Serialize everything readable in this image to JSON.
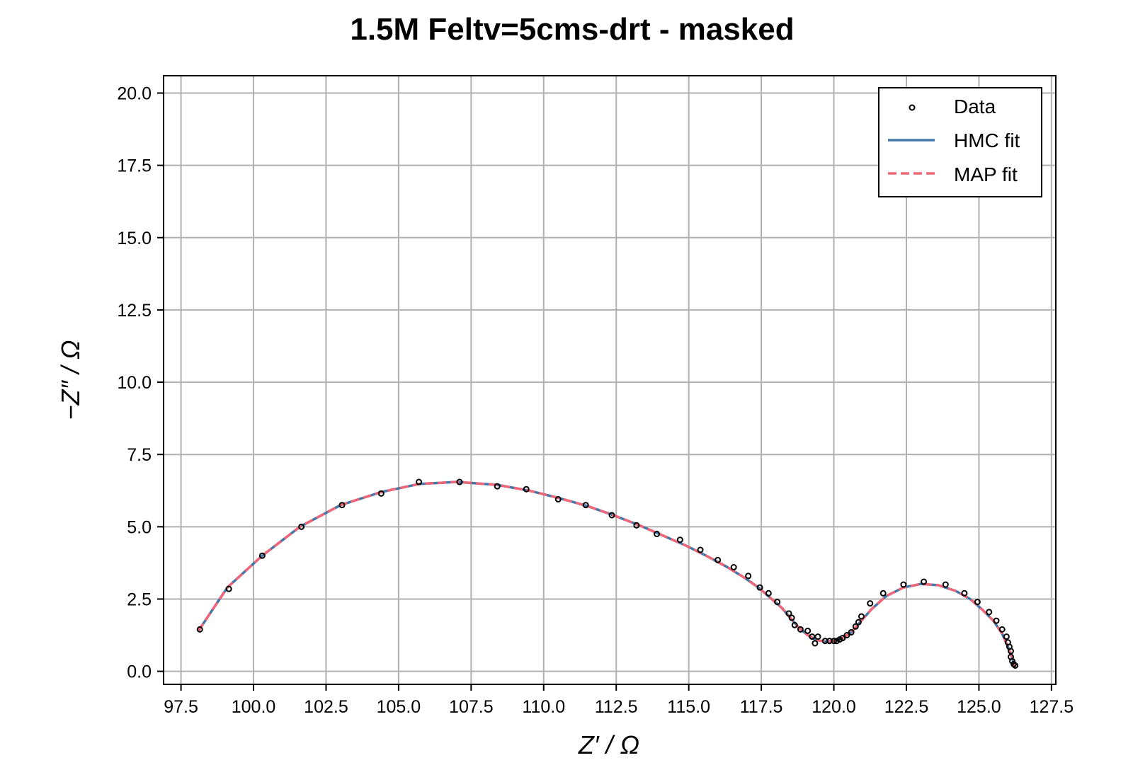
{
  "chart_data": {
    "type": "scatter",
    "title": "1.5M Feltv=5cms-drt - masked",
    "xlabel": "Z′ / Ω",
    "ylabel": "−Z″ / Ω",
    "xlim": [
      96.9,
      127.65
    ],
    "ylim": [
      -0.45,
      20.6
    ],
    "xticks": [
      97.5,
      100.0,
      102.5,
      105.0,
      107.5,
      110.0,
      112.5,
      115.0,
      117.5,
      120.0,
      122.5,
      125.0,
      127.5
    ],
    "yticks": [
      0.0,
      2.5,
      5.0,
      7.5,
      10.0,
      12.5,
      15.0,
      17.5,
      20.0
    ],
    "xtick_labels": [
      "97.5",
      "100.0",
      "102.5",
      "105.0",
      "107.5",
      "110.0",
      "112.5",
      "115.0",
      "117.5",
      "120.0",
      "122.5",
      "125.0",
      "127.5"
    ],
    "ytick_labels": [
      "0.0",
      "2.5",
      "5.0",
      "7.5",
      "10.0",
      "12.5",
      "15.0",
      "17.5",
      "20.0"
    ],
    "grid": true,
    "legend_position": "top-right",
    "legend": [
      {
        "label": "Data",
        "marker": "circle",
        "color": "#000000"
      },
      {
        "label": "HMC fit",
        "style": "solid",
        "color": "#4477aa"
      },
      {
        "label": "MAP fit",
        "style": "dashed",
        "color": "#ee6677"
      }
    ],
    "series": [
      {
        "name": "Data",
        "kind": "scatter",
        "color": "#000000",
        "x": [
          98.15,
          99.15,
          100.3,
          101.65,
          103.05,
          104.4,
          105.7,
          107.1,
          108.4,
          109.4,
          110.5,
          111.45,
          112.35,
          113.2,
          113.9,
          114.7,
          115.4,
          116.0,
          116.55,
          117.05,
          117.45,
          117.75,
          118.05,
          118.45,
          118.55,
          118.65,
          118.85,
          119.1,
          119.25,
          119.35,
          119.45,
          119.7,
          119.85,
          120.0,
          120.1,
          120.2,
          120.3,
          120.45,
          120.6,
          120.75,
          120.85,
          120.95,
          121.25,
          121.7,
          122.4,
          123.1,
          123.85,
          124.5,
          124.95,
          125.35,
          125.6,
          125.8,
          125.95,
          126.0,
          126.05,
          126.1,
          126.1,
          126.15,
          126.2,
          126.25
        ],
        "y": [
          1.45,
          2.85,
          4.0,
          5.0,
          5.75,
          6.15,
          6.55,
          6.55,
          6.4,
          6.3,
          5.95,
          5.75,
          5.4,
          5.05,
          4.75,
          4.55,
          4.2,
          3.85,
          3.6,
          3.3,
          2.9,
          2.7,
          2.4,
          2.0,
          1.85,
          1.6,
          1.45,
          1.4,
          1.2,
          0.97,
          1.2,
          1.05,
          1.05,
          1.05,
          1.05,
          1.1,
          1.15,
          1.25,
          1.35,
          1.55,
          1.7,
          1.9,
          2.35,
          2.7,
          3.0,
          3.1,
          3.0,
          2.7,
          2.4,
          2.05,
          1.75,
          1.45,
          1.2,
          1.0,
          0.85,
          0.7,
          0.5,
          0.35,
          0.25,
          0.2
        ]
      },
      {
        "name": "HMC fit",
        "kind": "line",
        "color": "#4477aa",
        "x": [
          98.1,
          99.1,
          100.3,
          101.6,
          103.0,
          104.4,
          105.7,
          107.0,
          108.4,
          109.5,
          110.5,
          111.5,
          112.4,
          113.3,
          114.1,
          114.9,
          115.6,
          116.3,
          116.9,
          117.4,
          117.8,
          118.2,
          118.5,
          118.8,
          119.1,
          119.4,
          119.7,
          120.0,
          120.3,
          120.6,
          120.9,
          121.3,
          121.8,
          122.4,
          123.0,
          123.6,
          124.2,
          124.7,
          125.1,
          125.5,
          125.8,
          126.0,
          126.15,
          126.25
        ],
        "y": [
          1.4,
          2.9,
          4.0,
          5.0,
          5.75,
          6.2,
          6.48,
          6.55,
          6.45,
          6.25,
          6.0,
          5.72,
          5.4,
          5.05,
          4.7,
          4.35,
          4.0,
          3.62,
          3.25,
          2.9,
          2.55,
          2.2,
          1.85,
          1.5,
          1.25,
          1.08,
          1.03,
          1.05,
          1.15,
          1.35,
          1.7,
          2.15,
          2.6,
          2.9,
          3.02,
          2.98,
          2.78,
          2.5,
          2.15,
          1.75,
          1.3,
          0.85,
          0.45,
          0.15
        ]
      },
      {
        "name": "MAP fit",
        "kind": "line",
        "color": "#ee6677",
        "x": [
          98.1,
          99.1,
          100.3,
          101.6,
          103.0,
          104.4,
          105.7,
          107.0,
          108.4,
          109.5,
          110.5,
          111.5,
          112.4,
          113.3,
          114.1,
          114.9,
          115.6,
          116.3,
          116.9,
          117.4,
          117.8,
          118.2,
          118.5,
          118.8,
          119.1,
          119.4,
          119.7,
          120.0,
          120.3,
          120.6,
          120.9,
          121.3,
          121.8,
          122.4,
          123.0,
          123.6,
          124.2,
          124.7,
          125.1,
          125.5,
          125.8,
          126.0,
          126.15,
          126.25
        ],
        "y": [
          1.4,
          2.9,
          4.0,
          5.0,
          5.75,
          6.2,
          6.48,
          6.55,
          6.45,
          6.25,
          6.0,
          5.72,
          5.4,
          5.05,
          4.7,
          4.35,
          4.0,
          3.62,
          3.25,
          2.9,
          2.55,
          2.2,
          1.85,
          1.5,
          1.25,
          1.08,
          1.03,
          1.05,
          1.15,
          1.35,
          1.7,
          2.15,
          2.6,
          2.9,
          3.02,
          2.98,
          2.78,
          2.5,
          2.15,
          1.75,
          1.3,
          0.85,
          0.45,
          0.15
        ]
      }
    ]
  }
}
